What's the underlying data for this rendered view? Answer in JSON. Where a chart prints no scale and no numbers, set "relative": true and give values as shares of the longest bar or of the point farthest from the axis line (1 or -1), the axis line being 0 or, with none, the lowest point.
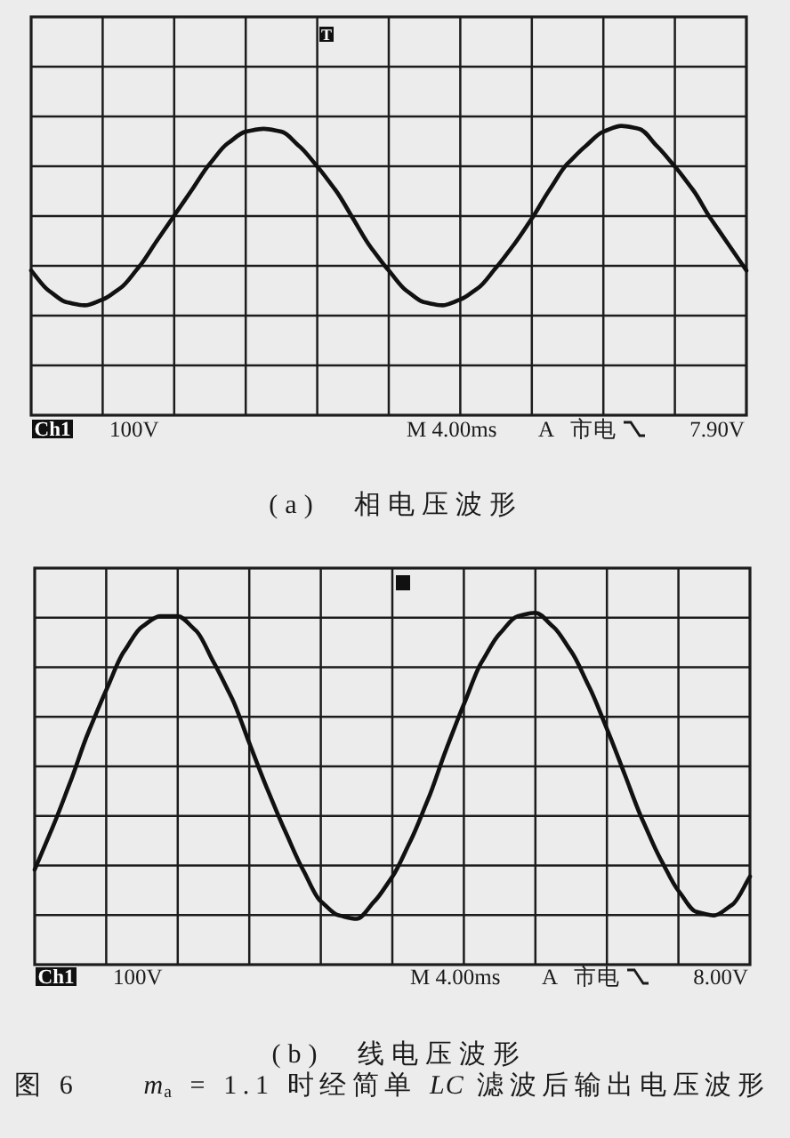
{
  "chart_data": [
    {
      "type": "line",
      "title": "(a)　相电压波形",
      "categories": [
        null,
        null,
        null,
        null,
        null,
        null,
        null,
        null,
        null,
        null,
        null,
        null,
        null,
        null,
        null,
        null,
        null,
        null,
        null,
        null,
        null,
        null,
        null,
        null,
        null,
        null,
        null,
        null,
        null,
        null,
        null,
        null,
        null,
        null,
        null,
        null,
        null,
        null,
        null,
        null,
        null
      ],
      "values": [
        0.5,
        0.43,
        0.39,
        0.38,
        0.4,
        0.44,
        0.51,
        0.6,
        0.69,
        0.78,
        0.87,
        0.94,
        0.98,
        0.99,
        0.98,
        0.93,
        0.86,
        0.78,
        0.68,
        0.58,
        0.5,
        0.43,
        0.39,
        0.38,
        0.4,
        0.44,
        0.51,
        0.59,
        0.68,
        0.78,
        0.87,
        0.93,
        0.98,
        1.0,
        0.99,
        0.93,
        0.86,
        0.78,
        0.68,
        0.59,
        0.5
      ],
      "color": "#111111",
      "relative": true,
      "grid": true,
      "annotations": [
        "Ch1",
        "100V",
        "M 4.00ms",
        "A",
        "市电",
        "7.90V",
        "T"
      ]
    },
    {
      "type": "line",
      "title": "(b)　线电压波形",
      "categories": [
        null,
        null,
        null,
        null,
        null,
        null,
        null,
        null,
        null,
        null,
        null,
        null,
        null,
        null,
        null,
        null,
        null,
        null,
        null,
        null,
        null,
        null,
        null,
        null,
        null,
        null,
        null,
        null,
        null,
        null,
        null,
        null,
        null,
        null,
        null,
        null,
        null,
        null,
        null,
        null,
        null
      ],
      "values": [
        0.27,
        0.39,
        0.52,
        0.66,
        0.78,
        0.89,
        0.96,
        0.99,
        0.99,
        0.95,
        0.86,
        0.76,
        0.63,
        0.5,
        0.38,
        0.27,
        0.18,
        0.14,
        0.13,
        0.18,
        0.25,
        0.35,
        0.47,
        0.61,
        0.74,
        0.86,
        0.94,
        0.99,
        1.0,
        0.96,
        0.89,
        0.79,
        0.67,
        0.54,
        0.41,
        0.3,
        0.21,
        0.15,
        0.14,
        0.17,
        0.25
      ],
      "color": "#111111",
      "relative": true,
      "grid": true,
      "annotations": [
        "Ch1",
        "100V",
        "M 4.00ms",
        "A",
        "市电",
        "8.00V",
        "图 6　　*m*$_{a}$ = 1.1 时经简单 *LC* 滤波后输出电压波形"
      ]
    }
  ]
}
